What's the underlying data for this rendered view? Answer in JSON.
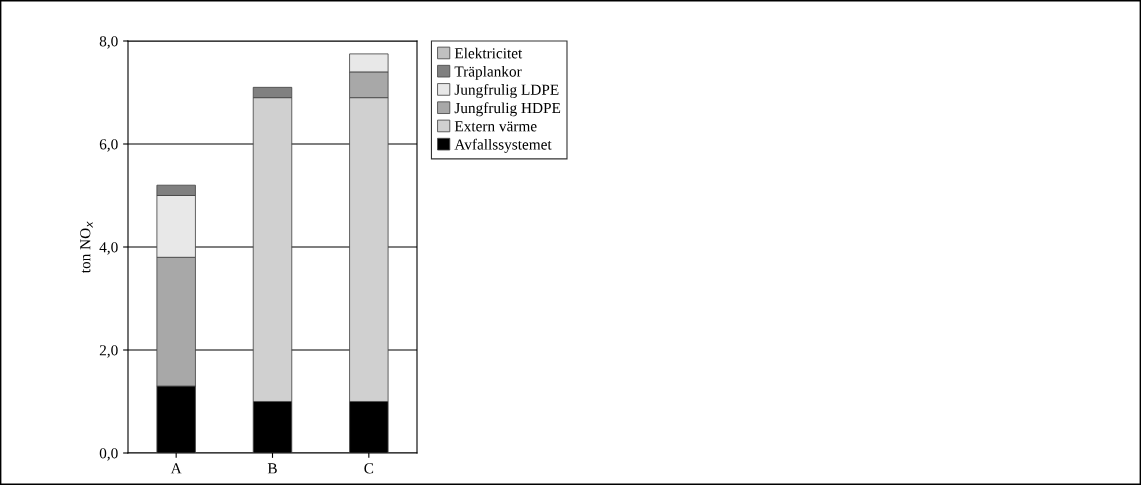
{
  "chart_data": {
    "type": "bar",
    "stacked": true,
    "ylabel": "ton NO$_{x}$",
    "categories": [
      "A",
      "B",
      "C"
    ],
    "series": [
      {
        "name": "Avfallssystemet",
        "color": "#000000",
        "values": [
          1.3,
          1.0,
          1.0
        ]
      },
      {
        "name": "Extern värme",
        "color": "#d0d0d0",
        "values": [
          null,
          5.9,
          5.9
        ]
      },
      {
        "name": "Jungfrulig HDPE",
        "color": "#a8a8a8",
        "values": [
          2.5,
          null,
          0.5
        ]
      },
      {
        "name": "Jungfrulig LDPE",
        "color": "#e8e8e8",
        "values": [
          1.2,
          null,
          0.35
        ]
      },
      {
        "name": "Träplankor",
        "color": "#808080",
        "values": [
          0.2,
          0.2,
          null
        ]
      },
      {
        "name": "Elektricitet",
        "color": "#c0c0c0",
        "values": [
          null,
          null,
          null
        ]
      }
    ],
    "ylim": [
      0,
      8
    ],
    "yticks": [
      {
        "value": 0,
        "label": "0,0"
      },
      {
        "value": 2,
        "label": "2,0"
      },
      {
        "value": 4,
        "label": "4,0"
      },
      {
        "value": 6,
        "label": "6,0"
      },
      {
        "value": 8,
        "label": "8,0"
      }
    ],
    "grid": "y",
    "legend": "right"
  }
}
